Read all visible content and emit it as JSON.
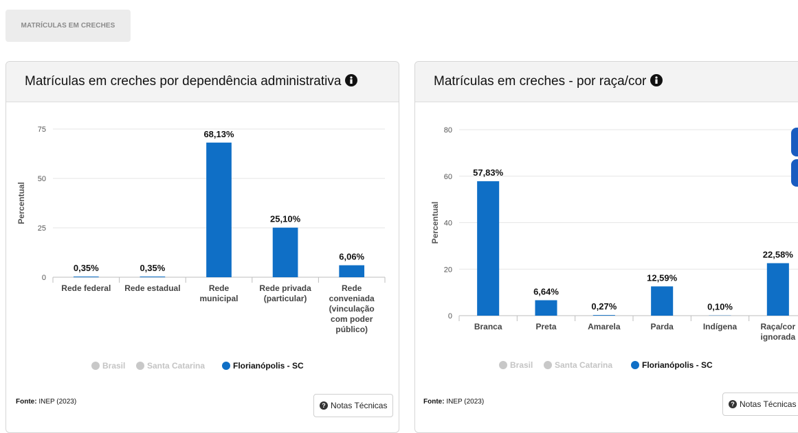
{
  "tab": {
    "label": "MATRÍCULAS EM CRECHES"
  },
  "legend": [
    "Brasil",
    "Santa Catarina",
    "Florianópolis - SC"
  ],
  "colors": {
    "active": "#0f6fc6",
    "inactive": "#c8c8c8",
    "grid": "#e6e6e6"
  },
  "cards": [
    {
      "title": "Matrículas em creches por dependência administrativa",
      "fonte_label": "Fonte:",
      "fonte_value": "INEP (2023)",
      "notas": "Notas Técnicas"
    },
    {
      "title": "Matrículas em creches - por raça/cor",
      "fonte_label": "Fonte:",
      "fonte_value": "INEP (2023)",
      "notas": "Notas Técnicas"
    }
  ],
  "chart_data": [
    {
      "type": "bar",
      "title": "Matrículas em creches por dependência administrativa",
      "ylabel": "Percentual",
      "ylim": [
        0,
        75
      ],
      "yticks": [
        0,
        25,
        50,
        75
      ],
      "categories": [
        [
          "Rede federal"
        ],
        [
          "Rede estadual"
        ],
        [
          "Rede",
          "municipal"
        ],
        [
          "Rede privada",
          "(particular)"
        ],
        [
          "Rede",
          "conveniada",
          "(vinculação",
          "com poder",
          "público)"
        ]
      ],
      "series": [
        {
          "name": "Florianópolis - SC",
          "values": [
            0.35,
            0.35,
            68.13,
            25.1,
            6.06
          ],
          "labels": [
            "0,35%",
            "0,35%",
            "68,13%",
            "25,10%",
            "6,06%"
          ]
        }
      ],
      "legend_position": "bottom"
    },
    {
      "type": "bar",
      "title": "Matrículas em creches - por raça/cor",
      "ylabel": "Percentual",
      "ylim": [
        0,
        80
      ],
      "yticks": [
        0,
        20,
        40,
        60,
        80
      ],
      "categories": [
        [
          "Branca"
        ],
        [
          "Preta"
        ],
        [
          "Amarela"
        ],
        [
          "Parda"
        ],
        [
          "Indígena"
        ],
        [
          "Raça/cor",
          "ignorada"
        ]
      ],
      "series": [
        {
          "name": "Florianópolis - SC",
          "values": [
            57.83,
            6.64,
            0.27,
            12.59,
            0.1,
            22.58
          ],
          "labels": [
            "57,83%",
            "6,64%",
            "0,27%",
            "12,59%",
            "0,10%",
            "22,58%"
          ]
        }
      ],
      "legend_position": "bottom"
    }
  ]
}
